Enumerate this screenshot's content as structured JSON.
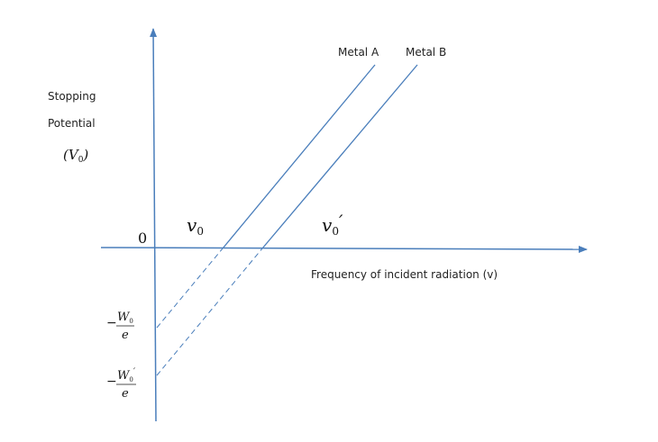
{
  "colors": {
    "line": "#4a7ebb",
    "text": "#222222"
  },
  "y_axis": {
    "label_line1": "Stopping",
    "label_line2": "Potential",
    "symbol": "(V",
    "symbol_sub": "0",
    "symbol_close": ")"
  },
  "x_axis": {
    "label": "Frequency of incident radiation (v)"
  },
  "origin": "0",
  "series": [
    {
      "name": "Metal A",
      "threshold_label": "v",
      "threshold_sub": "0",
      "threshold_prime": "",
      "intercept_num": "W",
      "intercept_sub": "0",
      "intercept_prime": "",
      "intercept_den": "e",
      "minus": "−"
    },
    {
      "name": "Metal B",
      "threshold_label": "v",
      "threshold_sub": "0",
      "threshold_prime": "′",
      "intercept_num": "W",
      "intercept_sub": "0",
      "intercept_prime": "′",
      "intercept_den": "e",
      "minus": "−"
    }
  ]
}
